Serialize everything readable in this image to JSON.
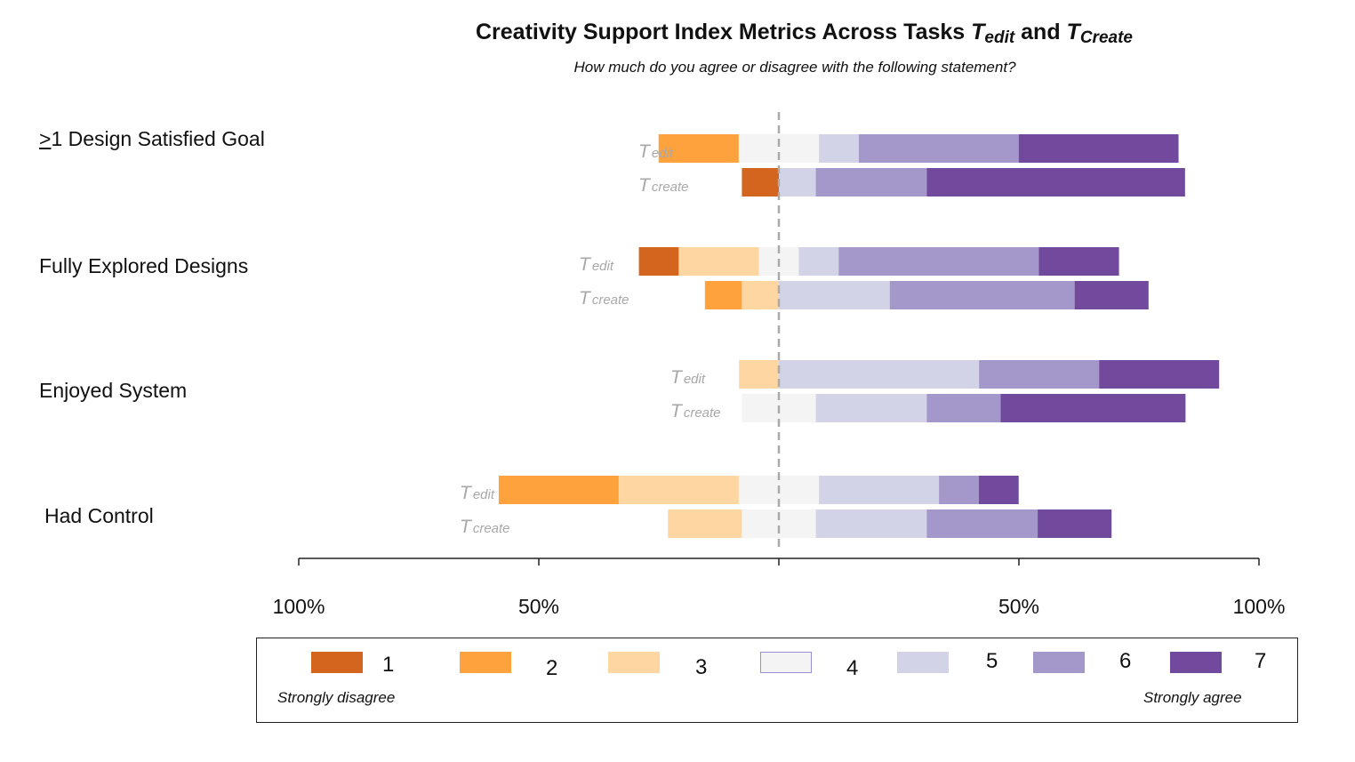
{
  "chart_data": {
    "type": "bar",
    "subtype": "diverging-stacked",
    "title": {
      "prefix": "Creativity Support Index Metrics Across Tasks ",
      "t1": "T",
      "t1_sub": "edit",
      "middle": " and ",
      "t2": "T",
      "t2_sub": "Create"
    },
    "subtitle": "How much do you agree or disagree with the following statement?",
    "x_ticks": [
      "100%",
      "50%",
      "",
      "50%",
      "100%"
    ],
    "xlim": [
      -100,
      100
    ],
    "row_labels": [
      {
        "t": "T",
        "sub": "edit"
      },
      {
        "t": "T",
        "sub": "create"
      }
    ],
    "categories": [
      {
        "label_prefix": ">",
        "label_prefix_rest": "1",
        "label": " Design Satisfied Goal",
        "rows": [
          {
            "task": "edit",
            "values": [
              0,
              16.7,
              0,
              16.7,
              8.3,
              33.3,
              33.3
            ]
          },
          {
            "task": "create",
            "values": [
              7.7,
              0,
              0,
              0,
              7.7,
              23.1,
              53.8
            ]
          }
        ]
      },
      {
        "label_prefix": "",
        "label_prefix_rest": "",
        "label": "Fully Explored Designs",
        "rows": [
          {
            "task": "edit",
            "values": [
              8.3,
              0,
              16.7,
              8.3,
              8.3,
              41.7,
              16.7
            ]
          },
          {
            "task": "create",
            "values": [
              0,
              7.7,
              7.7,
              0,
              23.1,
              38.5,
              15.4
            ]
          }
        ]
      },
      {
        "label_prefix": "",
        "label_prefix_rest": "",
        "label": "Enjoyed System",
        "rows": [
          {
            "task": "edit",
            "values": [
              0,
              0,
              8.3,
              0,
              41.7,
              25,
              25
            ]
          },
          {
            "task": "create",
            "values": [
              0,
              0,
              0,
              15.4,
              23.1,
              15.4,
              38.5
            ]
          }
        ]
      },
      {
        "label_prefix": "",
        "label_prefix_rest": "",
        "label": "Had Control",
        "rows": [
          {
            "task": "edit",
            "values": [
              0,
              25,
              25,
              16.7,
              25,
              8.3,
              8.3
            ]
          },
          {
            "task": "create",
            "values": [
              0,
              0,
              15.4,
              15.4,
              23.1,
              23.1,
              15.4
            ]
          }
        ]
      }
    ],
    "legend": {
      "items": [
        "1",
        "2",
        "3",
        "4",
        "5",
        "6",
        "7"
      ],
      "low_note": "Strongly disagree",
      "high_note": "Strongly agree"
    },
    "colors": [
      "#d4651f",
      "#fda23d",
      "#fdd6a2",
      "#f4f4f4",
      "#d3d3e8",
      "#a497c9",
      "#724a9d"
    ]
  }
}
